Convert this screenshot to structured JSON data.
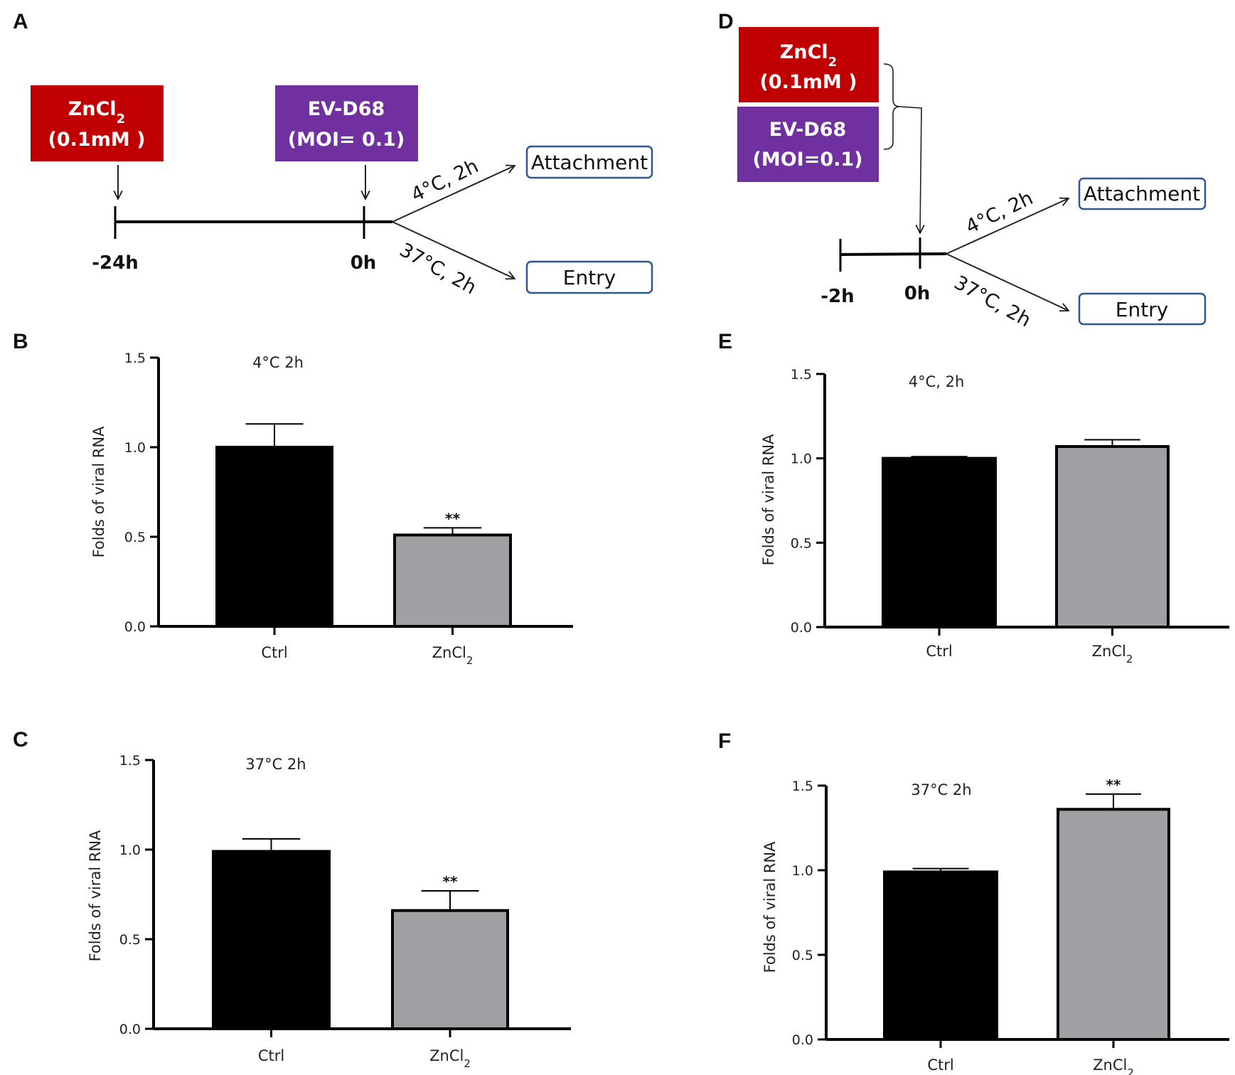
{
  "colors": {
    "zinc_box": "#c00000",
    "virus_box": "#7030a0",
    "outcome_border": "#2f5597",
    "ctrl_bar": "#000000",
    "zncl2_bar": "#a0a0a4"
  },
  "panels": {
    "A": {
      "letter": "A",
      "zinc_line1": "ZnCl",
      "zinc_sub": "2",
      "zinc_line2": "(0.1mM )",
      "virus_line1": "EV-D68",
      "virus_line2": "(MOI= 0.1)",
      "t_start": "-24h",
      "t_zero": "0h",
      "cond_cold": "4°C, 2h",
      "cond_warm": "37°C,  2h",
      "out_attach": "Attachment",
      "out_entry": "Entry"
    },
    "D": {
      "letter": "D",
      "zinc_line1": "ZnCl",
      "zinc_sub": "2",
      "zinc_line2": "(0.1mM )",
      "virus_line1": "EV-D68",
      "virus_line2": "(MOI=0.1)",
      "t_start": "-2h",
      "t_zero": "0h",
      "cond_cold": "4°C, 2h",
      "cond_warm": "37°C,  2h",
      "out_attach": "Attachment",
      "out_entry": "Entry"
    }
  },
  "chart_data": [
    {
      "panel": "B",
      "type": "bar",
      "title": "4°C 2h",
      "ylabel": "Folds of viral RNA",
      "ylim": [
        0,
        1.5
      ],
      "yticks": [
        "0.0",
        "0.5",
        "1.0",
        "1.5"
      ],
      "categories": [
        "Ctrl",
        "ZnCl2"
      ],
      "category_labels": [
        {
          "text": "Ctrl",
          "sub": ""
        },
        {
          "text": "ZnCl",
          "sub": "2"
        }
      ],
      "values": [
        1.0,
        0.51
      ],
      "errors": [
        0.13,
        0.04
      ],
      "significance": [
        "",
        "**"
      ]
    },
    {
      "panel": "C",
      "type": "bar",
      "title": "37°C 2h",
      "ylabel": "Folds of viral RNA",
      "ylim": [
        0,
        1.5
      ],
      "yticks": [
        "0.0",
        "0.5",
        "1.0",
        "1.5"
      ],
      "categories": [
        "Ctrl",
        "ZnCl2"
      ],
      "category_labels": [
        {
          "text": "Ctrl",
          "sub": ""
        },
        {
          "text": "ZnCl",
          "sub": "2"
        }
      ],
      "values": [
        0.99,
        0.66
      ],
      "errors": [
        0.07,
        0.11
      ],
      "significance": [
        "",
        "**"
      ]
    },
    {
      "panel": "E",
      "type": "bar",
      "title": "4°C, 2h",
      "ylabel": "Folds of viral RNA",
      "ylim": [
        0,
        1.5
      ],
      "yticks": [
        "0.0",
        "0.5",
        "1.0",
        "1.5"
      ],
      "categories": [
        "Ctrl",
        "ZnCl2"
      ],
      "category_labels": [
        {
          "text": "Ctrl",
          "sub": ""
        },
        {
          "text": "ZnCl",
          "sub": "2"
        }
      ],
      "values": [
        1.0,
        1.07
      ],
      "errors": [
        0.01,
        0.04
      ],
      "significance": [
        "",
        ""
      ]
    },
    {
      "panel": "F",
      "type": "bar",
      "title": "37°C 2h",
      "ylabel": "Folds of viral RNA",
      "ylim": [
        0,
        1.5
      ],
      "yticks": [
        "0.0",
        "0.5",
        "1.0",
        "1.5"
      ],
      "categories": [
        "Ctrl",
        "ZnCl2"
      ],
      "category_labels": [
        {
          "text": "Ctrl",
          "sub": ""
        },
        {
          "text": "ZnCl",
          "sub": "2"
        }
      ],
      "values": [
        0.99,
        1.36
      ],
      "errors": [
        0.02,
        0.09
      ],
      "significance": [
        "",
        "**"
      ]
    }
  ]
}
